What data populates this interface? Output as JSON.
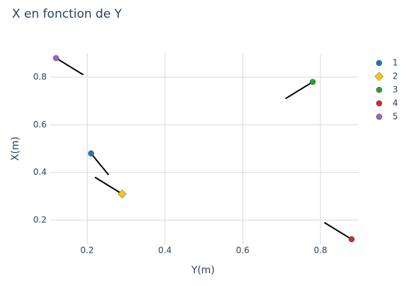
{
  "chart_data": {
    "type": "scatter",
    "title": "X en fonction de Y",
    "x_label": "Y(m)",
    "y_label": "X(m)",
    "xlim": [
      0.105,
      0.898
    ],
    "ylim": [
      0.099,
      0.901
    ],
    "xticks": [
      0.2,
      0.4,
      0.6,
      0.8
    ],
    "yticks": [
      0.2,
      0.4,
      0.6,
      0.8
    ],
    "grid": true,
    "series": [
      {
        "name": "1",
        "color": "#1f77b4",
        "symbol": "circle",
        "x": [
          0.21
        ],
        "values": [
          0.48
        ]
      },
      {
        "name": "2",
        "color": "#f5c518",
        "symbol": "diamond",
        "x": [
          0.29
        ],
        "values": [
          0.31
        ]
      },
      {
        "name": "3",
        "color": "#2ca02c",
        "symbol": "circle",
        "x": [
          0.78
        ],
        "values": [
          0.78
        ]
      },
      {
        "name": "4",
        "color": "#d62728",
        "symbol": "circle",
        "x": [
          0.88
        ],
        "values": [
          0.12
        ]
      },
      {
        "name": "5",
        "color": "#9467bd",
        "symbol": "circle",
        "x": [
          0.12
        ],
        "values": [
          0.88
        ]
      }
    ],
    "segments_color": "#000000",
    "segments": [
      {
        "x": [
          0.21,
          0.255
        ],
        "values": [
          0.48,
          0.39
        ]
      },
      {
        "x": [
          0.22,
          0.29
        ],
        "values": [
          0.38,
          0.31
        ]
      },
      {
        "x": [
          0.71,
          0.78
        ],
        "values": [
          0.71,
          0.78
        ]
      },
      {
        "x": [
          0.81,
          0.88
        ],
        "values": [
          0.19,
          0.12
        ]
      },
      {
        "x": [
          0.12,
          0.19
        ],
        "values": [
          0.88,
          0.81
        ]
      }
    ]
  }
}
